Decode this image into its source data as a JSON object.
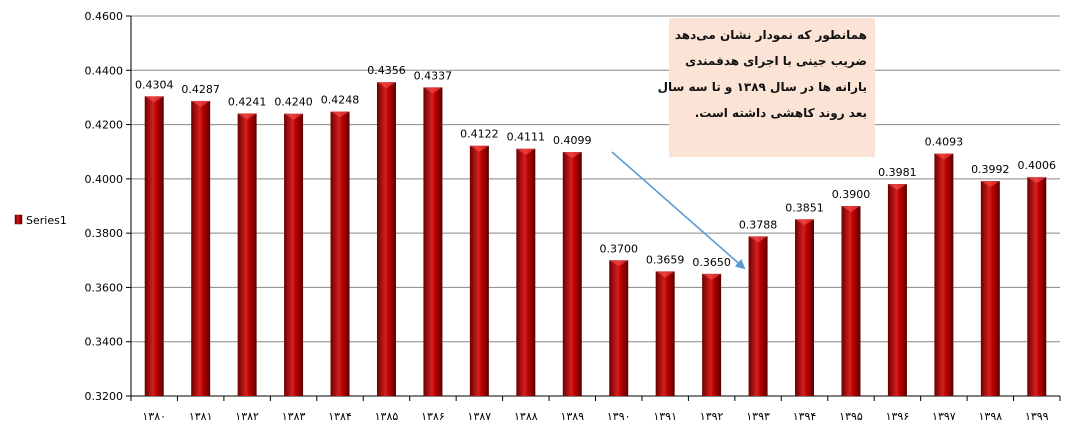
{
  "chart_data": {
    "type": "bar",
    "categories": [
      "۱۳۸۰",
      "۱۳۸۱",
      "۱۳۸۲",
      "۱۳۸۳",
      "۱۳۸۴",
      "۱۳۸۵",
      "۱۳۸۶",
      "۱۳۸۷",
      "۱۳۸۸",
      "۱۳۸۹",
      "۱۳۹۰",
      "۱۳۹۱",
      "۱۳۹۲",
      "۱۳۹۳",
      "۱۳۹۴",
      "۱۳۹۵",
      "۱۳۹۶",
      "۱۳۹۷",
      "۱۳۹۸",
      "۱۳۹۹"
    ],
    "series": [
      {
        "name": "Series1",
        "values": [
          0.4304,
          0.4287,
          0.4241,
          0.424,
          0.4248,
          0.4356,
          0.4337,
          0.4122,
          0.4111,
          0.4099,
          0.37,
          0.3659,
          0.365,
          0.3788,
          0.3851,
          0.39,
          0.3981,
          0.4093,
          0.3992,
          0.4006
        ],
        "labels": [
          "0.4304",
          "0.4287",
          "0.4241",
          "0.4240",
          "0.4248",
          "0.4356",
          "0.4337",
          "0.4122",
          "0.4111",
          "0.4099",
          "0.3700",
          "0.3659",
          "0.3650",
          "0.3788",
          "0.3851",
          "0.3900",
          "0.3981",
          "0.4093",
          "0.3992",
          "0.4006"
        ]
      }
    ],
    "ylim": [
      0.32,
      0.46
    ],
    "yticks": [
      "0.3200",
      "0.3400",
      "0.3600",
      "0.3800",
      "0.4000",
      "0.4200",
      "0.4400",
      "0.4600"
    ],
    "ytick_values": [
      0.32,
      0.34,
      0.36,
      0.38,
      0.4,
      0.42,
      0.44,
      0.46
    ],
    "grid": true,
    "legend_position": "left",
    "annotation": [
      "همانطور که نمودار نشان می‌دهد",
      "ضریب جینی با اجرای هدفمندی",
      "یارانه ها در سال ۱۳۸۹ و تا سه سال",
      "بعد روند کاهشی داشته است."
    ],
    "colors": {
      "bar_dark": "#6e0000",
      "bar_mid": "#c00000",
      "bar_light": "#e23a3a",
      "grid": "#878787",
      "annotation_bg": "#fbe4d5",
      "arrow": "#5b9bd5"
    }
  }
}
